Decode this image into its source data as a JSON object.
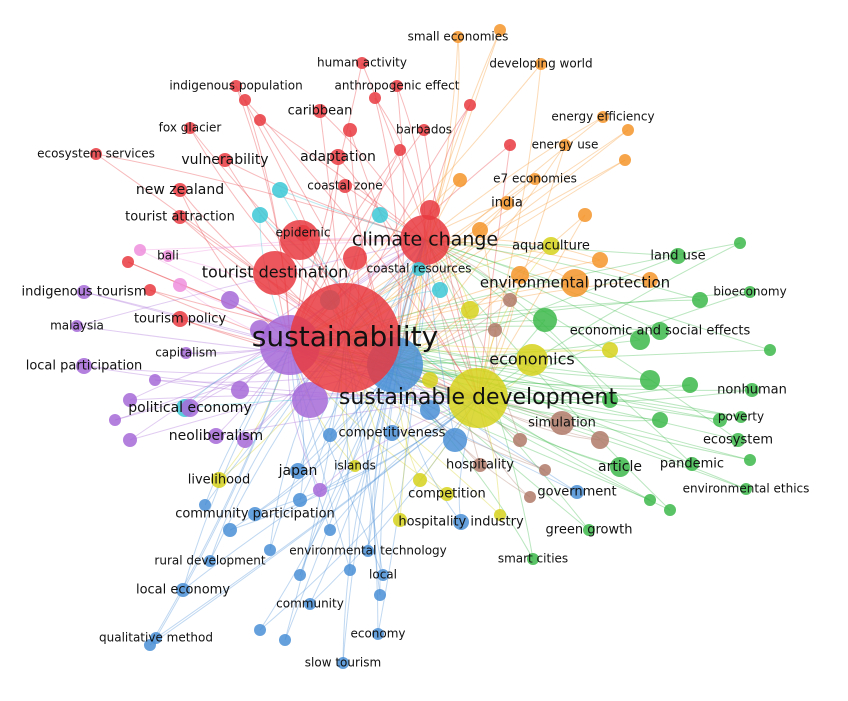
{
  "nodes": [
    {
      "label": "sustainability",
      "color": "#e8393f"
    },
    {
      "label": "sustainable development",
      "color": "#d6d21c"
    },
    {
      "label": "climate change",
      "color": "#e8393f"
    },
    {
      "label": "tourist destination",
      "color": "#e8393f"
    },
    {
      "label": "economics",
      "color": "#d6d21c"
    },
    {
      "label": "environmental protection",
      "color": "#f5952a"
    },
    {
      "label": "adaptation",
      "color": "#e8393f"
    },
    {
      "label": "vulnerability",
      "color": "#e8393f"
    },
    {
      "label": "new zealand",
      "color": "#e8393f"
    },
    {
      "label": "tourist attraction",
      "color": "#e8393f"
    },
    {
      "label": "caribbean",
      "color": "#e8393f"
    },
    {
      "label": "human activity",
      "color": "#e8393f"
    },
    {
      "label": "anthropogenic effect",
      "color": "#e8393f"
    },
    {
      "label": "indigenous population",
      "color": "#e8393f"
    },
    {
      "label": "fox glacier",
      "color": "#e8393f"
    },
    {
      "label": "ecosystem services",
      "color": "#e8393f"
    },
    {
      "label": "barbados",
      "color": "#e8393f"
    },
    {
      "label": "coastal zone",
      "color": "#e8393f"
    },
    {
      "label": "epidemic",
      "color": "#e8393f"
    },
    {
      "label": "tourism policy",
      "color": "#e8393f"
    },
    {
      "label": "bali",
      "color": "#ee8fdc"
    },
    {
      "label": "indigenous tourism",
      "color": "#a66ad8"
    },
    {
      "label": "malaysia",
      "color": "#a66ad8"
    },
    {
      "label": "capitalism",
      "color": "#a66ad8"
    },
    {
      "label": "local participation",
      "color": "#a66ad8"
    },
    {
      "label": "political economy",
      "color": "#a66ad8"
    },
    {
      "label": "neoliberalism",
      "color": "#a66ad8"
    },
    {
      "label": "competitiveness",
      "color": "#4a8fd6"
    },
    {
      "label": "competition",
      "color": "#d6d21c"
    },
    {
      "label": "hospitality industry",
      "color": "#4a8fd6"
    },
    {
      "label": "hospitality",
      "color": "#b07a6a"
    },
    {
      "label": "simulation",
      "color": "#b07a6a"
    },
    {
      "label": "japan",
      "color": "#4a8fd6"
    },
    {
      "label": "livelihood",
      "color": "#d6d21c"
    },
    {
      "label": "community participation",
      "color": "#4a8fd6"
    },
    {
      "label": "rural development",
      "color": "#4a8fd6"
    },
    {
      "label": "local economy",
      "color": "#4a8fd6"
    },
    {
      "label": "environmental technology",
      "color": "#4a8fd6"
    },
    {
      "label": "local",
      "color": "#4a8fd6"
    },
    {
      "label": "community",
      "color": "#4a8fd6"
    },
    {
      "label": "economy",
      "color": "#4a8fd6"
    },
    {
      "label": "qualitative method",
      "color": "#4a8fd6"
    },
    {
      "label": "slow tourism",
      "color": "#4a8fd6"
    },
    {
      "label": "islands",
      "color": "#d6d21c"
    },
    {
      "label": "article",
      "color": "#3cb94a"
    },
    {
      "label": "pandemic",
      "color": "#3cb94a"
    },
    {
      "label": "environmental ethics",
      "color": "#3cb94a"
    },
    {
      "label": "ecosystem",
      "color": "#3cb94a"
    },
    {
      "label": "poverty",
      "color": "#3cb94a"
    },
    {
      "label": "nonhuman",
      "color": "#3cb94a"
    },
    {
      "label": "economic and social effects",
      "color": "#3cb94a"
    },
    {
      "label": "bioeconomy",
      "color": "#3cb94a"
    },
    {
      "label": "land use",
      "color": "#3cb94a"
    },
    {
      "label": "government",
      "color": "#4a8fd6"
    },
    {
      "label": "green growth",
      "color": "#3cb94a"
    },
    {
      "label": "smart cities",
      "color": "#3cb94a"
    },
    {
      "label": "aquaculture",
      "color": "#d6d21c"
    },
    {
      "label": "india",
      "color": "#f5952a"
    },
    {
      "label": "e7 economies",
      "color": "#f5952a"
    },
    {
      "label": "energy use",
      "color": "#f5952a"
    },
    {
      "label": "energy efficiency",
      "color": "#f5952a"
    },
    {
      "label": "developing world",
      "color": "#f5952a"
    },
    {
      "label": "small economies",
      "color": "#f5952a"
    },
    {
      "label": "coastal resources",
      "color": "#3cc8d6"
    }
  ]
}
